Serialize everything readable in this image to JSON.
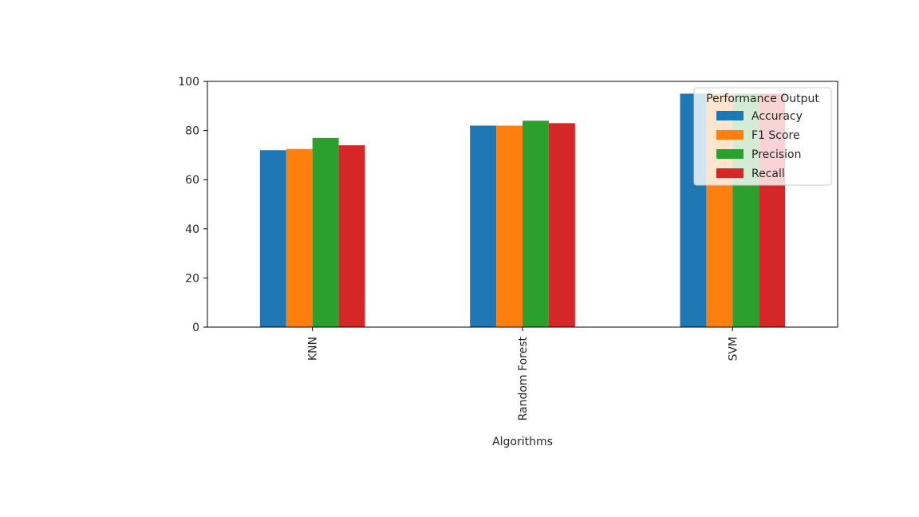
{
  "chart_data": {
    "type": "bar",
    "title": "",
    "xlabel": "Algorithms",
    "ylabel": "",
    "ylim": [
      0,
      100
    ],
    "yticks": [
      0,
      20,
      40,
      60,
      80,
      100
    ],
    "categories": [
      "KNN",
      "Random Forest",
      "SVM"
    ],
    "series": [
      {
        "name": "Accuracy",
        "color": "#1f77b4",
        "values": [
          72,
          82,
          95
        ]
      },
      {
        "name": "F1 Score",
        "color": "#ff7f0e",
        "values": [
          72.5,
          82,
          95
        ]
      },
      {
        "name": "Precision",
        "color": "#2ca02c",
        "values": [
          77,
          84,
          95
        ]
      },
      {
        "name": "Recall",
        "color": "#d62728",
        "values": [
          74,
          83,
          95
        ]
      }
    ],
    "legend": {
      "title": "Performance Output",
      "position": "top-right"
    },
    "grid": false,
    "x_tick_rotation": "vertical"
  }
}
